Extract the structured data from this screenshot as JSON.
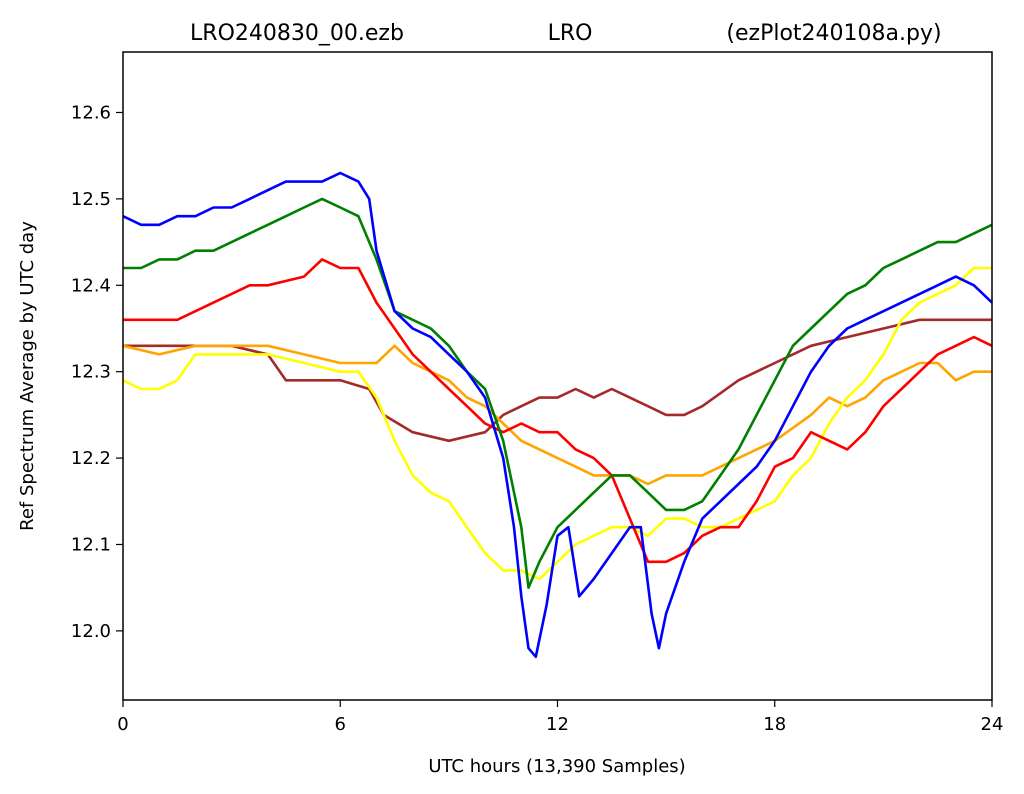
{
  "chart_data": {
    "type": "line",
    "title_left": "LRO240830_00.ezb",
    "title_center": "LRO",
    "title_right": "(ezPlot240108a.py)",
    "xlabel": "UTC hours  (13,390 Samples)",
    "ylabel": "Ref Spectrum Average by UTC day",
    "xlim": [
      0,
      24
    ],
    "ylim": [
      11.92,
      12.67
    ],
    "x_ticks": [
      0,
      6,
      12,
      18,
      24
    ],
    "y_ticks": [
      12.0,
      12.1,
      12.2,
      12.3,
      12.4,
      12.5,
      12.6
    ],
    "y_tick_labels": [
      "12.0",
      "12.1",
      "12.2",
      "12.3",
      "12.4",
      "12.5",
      "12.6"
    ],
    "grid": false,
    "legend": "none",
    "series": [
      {
        "color": "#a52a2a",
        "x": [
          0,
          1,
          2,
          3,
          4,
          4.5,
          5,
          6,
          6.8,
          7.2,
          8,
          9,
          10,
          10.5,
          11,
          11.5,
          12,
          12.5,
          13,
          13.5,
          14,
          14.5,
          15,
          15.5,
          16,
          17,
          18,
          19,
          20,
          21,
          22,
          23,
          24
        ],
        "y": [
          12.33,
          12.33,
          12.33,
          12.33,
          12.32,
          12.29,
          12.29,
          12.29,
          12.28,
          12.25,
          12.23,
          12.22,
          12.23,
          12.25,
          12.26,
          12.27,
          12.27,
          12.28,
          12.27,
          12.28,
          12.27,
          12.26,
          12.25,
          12.25,
          12.26,
          12.29,
          12.31,
          12.33,
          12.34,
          12.35,
          12.36,
          12.36,
          12.36
        ]
      },
      {
        "color": "#ffa500",
        "x": [
          0,
          1,
          2,
          3,
          4,
          5,
          6,
          6.5,
          7,
          7.5,
          8,
          8.5,
          9,
          9.5,
          10,
          10.5,
          11,
          11.5,
          12,
          12.5,
          13,
          14,
          14.5,
          15,
          16,
          17,
          18,
          19,
          19.5,
          20,
          20.5,
          21,
          21.5,
          22,
          22.5,
          23,
          23.5,
          24
        ],
        "y": [
          12.33,
          12.32,
          12.33,
          12.33,
          12.33,
          12.32,
          12.31,
          12.31,
          12.31,
          12.33,
          12.31,
          12.3,
          12.29,
          12.27,
          12.26,
          12.24,
          12.22,
          12.21,
          12.2,
          12.19,
          12.18,
          12.18,
          12.17,
          12.18,
          12.18,
          12.2,
          12.22,
          12.25,
          12.27,
          12.26,
          12.27,
          12.29,
          12.3,
          12.31,
          12.31,
          12.29,
          12.3,
          12.3
        ]
      },
      {
        "color": "#ffff00",
        "x": [
          0,
          0.5,
          1,
          1.5,
          2,
          2.5,
          3,
          4,
          5,
          6,
          6.5,
          7,
          7.5,
          8,
          8.5,
          9,
          9.5,
          10,
          10.5,
          11,
          11.5,
          12,
          12.5,
          13,
          13.5,
          14,
          14.5,
          15,
          15.5,
          16,
          16.5,
          17,
          17.5,
          18,
          18.5,
          19,
          19.5,
          20,
          20.5,
          21,
          21.5,
          22,
          22.5,
          23,
          23.5,
          24
        ],
        "y": [
          12.29,
          12.28,
          12.28,
          12.29,
          12.32,
          12.32,
          12.32,
          12.32,
          12.31,
          12.3,
          12.3,
          12.27,
          12.22,
          12.18,
          12.16,
          12.15,
          12.12,
          12.09,
          12.07,
          12.07,
          12.06,
          12.08,
          12.1,
          12.11,
          12.12,
          12.12,
          12.11,
          12.13,
          12.13,
          12.12,
          12.12,
          12.13,
          12.14,
          12.15,
          12.18,
          12.2,
          12.24,
          12.27,
          12.29,
          12.32,
          12.36,
          12.38,
          12.39,
          12.4,
          12.42,
          12.42
        ]
      },
      {
        "color": "#ff0000",
        "x": [
          0,
          1,
          1.5,
          2,
          2.5,
          3,
          3.5,
          4,
          5,
          5.5,
          6,
          6.5,
          7,
          7.5,
          8,
          8.5,
          9,
          9.5,
          10,
          10.5,
          11,
          11.5,
          12,
          12.5,
          13,
          13.5,
          14,
          14.5,
          15,
          15.5,
          16,
          16.5,
          17,
          17.5,
          18,
          18.5,
          19,
          19.5,
          20,
          20.5,
          21,
          21.5,
          22,
          22.5,
          23,
          23.5,
          24
        ],
        "y": [
          12.36,
          12.36,
          12.36,
          12.37,
          12.38,
          12.39,
          12.4,
          12.4,
          12.41,
          12.43,
          12.42,
          12.42,
          12.38,
          12.35,
          12.32,
          12.3,
          12.28,
          12.26,
          12.24,
          12.23,
          12.24,
          12.23,
          12.23,
          12.21,
          12.2,
          12.18,
          12.13,
          12.08,
          12.08,
          12.09,
          12.11,
          12.12,
          12.12,
          12.15,
          12.19,
          12.2,
          12.23,
          12.22,
          12.21,
          12.23,
          12.26,
          12.28,
          12.3,
          12.32,
          12.33,
          12.34,
          12.33
        ]
      },
      {
        "color": "#008000",
        "x": [
          0,
          0.5,
          1,
          1.5,
          2,
          2.5,
          3,
          3.5,
          4,
          4.5,
          5,
          5.5,
          6,
          6.5,
          7,
          7.5,
          8,
          8.5,
          9,
          9.5,
          10,
          10.5,
          11,
          11.2,
          11.5,
          12,
          12.5,
          13,
          13.5,
          14,
          14.5,
          15,
          15.5,
          16,
          16.5,
          17,
          17.5,
          18,
          18.5,
          19,
          19.5,
          20,
          20.5,
          21,
          21.5,
          22,
          22.5,
          23,
          23.5,
          24
        ],
        "y": [
          12.42,
          12.42,
          12.43,
          12.43,
          12.44,
          12.44,
          12.45,
          12.46,
          12.47,
          12.48,
          12.49,
          12.5,
          12.49,
          12.48,
          12.43,
          12.37,
          12.36,
          12.35,
          12.33,
          12.3,
          12.28,
          12.22,
          12.12,
          12.05,
          12.08,
          12.12,
          12.14,
          12.16,
          12.18,
          12.18,
          12.16,
          12.14,
          12.14,
          12.15,
          12.18,
          12.21,
          12.25,
          12.29,
          12.33,
          12.35,
          12.37,
          12.39,
          12.4,
          12.42,
          12.43,
          12.44,
          12.45,
          12.45,
          12.46,
          12.47
        ]
      },
      {
        "color": "#0000ff",
        "x": [
          0,
          0.5,
          1,
          1.5,
          2,
          2.5,
          3,
          3.5,
          4,
          4.5,
          5,
          5.5,
          6,
          6.5,
          6.8,
          7,
          7.5,
          8,
          8.5,
          9,
          9.5,
          10,
          10.5,
          10.8,
          11,
          11.2,
          11.4,
          11.7,
          12,
          12.3,
          12.6,
          13,
          13.5,
          14,
          14.3,
          14.6,
          14.8,
          15,
          15.5,
          16,
          16.5,
          17,
          17.5,
          18,
          18.5,
          19,
          19.5,
          20,
          20.5,
          21,
          21.5,
          22,
          22.5,
          23,
          23.5,
          24
        ],
        "y": [
          12.48,
          12.47,
          12.47,
          12.48,
          12.48,
          12.49,
          12.49,
          12.5,
          12.51,
          12.52,
          12.52,
          12.52,
          12.53,
          12.52,
          12.5,
          12.44,
          12.37,
          12.35,
          12.34,
          12.32,
          12.3,
          12.27,
          12.2,
          12.12,
          12.04,
          11.98,
          11.97,
          12.03,
          12.11,
          12.12,
          12.04,
          12.06,
          12.09,
          12.12,
          12.12,
          12.02,
          11.98,
          12.02,
          12.08,
          12.13,
          12.15,
          12.17,
          12.19,
          12.22,
          12.26,
          12.3,
          12.33,
          12.35,
          12.36,
          12.37,
          12.38,
          12.39,
          12.4,
          12.41,
          12.4,
          12.38
        ]
      }
    ]
  }
}
